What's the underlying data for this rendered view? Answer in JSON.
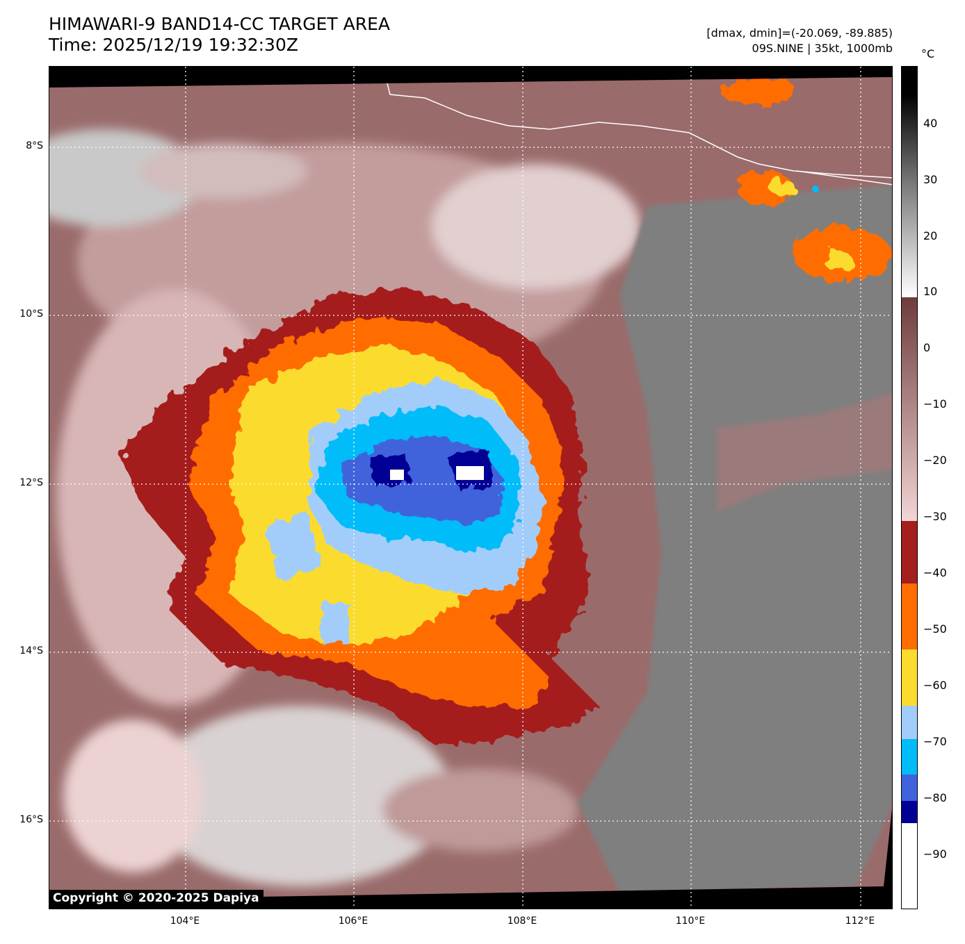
{
  "title": "HIMAWARI-9 BAND14-CC TARGET AREA",
  "time": "Time: 2025/12/19 19:32:30Z",
  "dminmax": "[dmax, dmin]=(-20.069, -89.885)",
  "storm": "09S.NINE | 35kt, 1000mb",
  "copyright": "Copyright © 2020-2025 Dapiya",
  "colorbar": {
    "unit": "°C",
    "ticks": [
      "40",
      "30",
      "20",
      "10",
      "0",
      "−10",
      "−20",
      "−30",
      "−40",
      "−50",
      "−60",
      "−70",
      "−80",
      "−90"
    ],
    "colors": {
      "black": "#000000",
      "grey": "#888888",
      "white": "#ffffff",
      "brown": "#6e3c3c",
      "pink": "#f3d5d5",
      "darkred": "#a51f1f",
      "orange": "#ff6c00",
      "yellow": "#fbdc2e",
      "lightblue": "#a2cdfa",
      "cyan": "#00bcf9",
      "royal": "#3f63dc",
      "navy": "#000095"
    }
  },
  "axes": {
    "lat_labels": [
      "8°S",
      "10°S",
      "12°S",
      "14°S",
      "16°S"
    ],
    "lon_labels": [
      "104°E",
      "106°E",
      "108°E",
      "110°E",
      "112°E"
    ]
  }
}
